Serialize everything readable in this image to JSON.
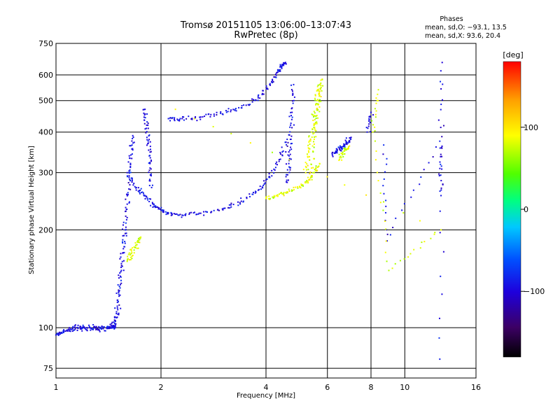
{
  "chart_data": {
    "type": "scatter",
    "title": "Tromsø 20151105 13:06:00–13:07:43",
    "subtitle": "RwPretec (8p)",
    "xlabel": "Frequency [MHz]",
    "ylabel": "Stationary phase Virtual Height [km]",
    "x_scale": "log",
    "y_scale": "log",
    "xlim": [
      1,
      16
    ],
    "ylim": [
      70,
      750
    ],
    "x_ticks": [
      1,
      2,
      4,
      6,
      8,
      10,
      16
    ],
    "x_tick_labels": [
      "1",
      "2",
      "4",
      "6",
      "8",
      "10",
      "16"
    ],
    "y_ticks": [
      75,
      100,
      200,
      300,
      400,
      500,
      600,
      750
    ],
    "y_tick_labels": [
      "75",
      "100",
      "200",
      "300",
      "400",
      "500",
      "600",
      "750"
    ],
    "grid": true,
    "stats": {
      "header": "Phases",
      "line_o": "mean, sd,O: −93.1, 13.5",
      "line_x": "mean, sd,X:  93.6, 20.4"
    },
    "colorbar": {
      "label": "[deg]",
      "range": [
        -180,
        180
      ],
      "ticks": [
        100,
        0,
        -100
      ],
      "tick_labels": [
        "100",
        "0",
        "−100"
      ],
      "colors": [
        "#000000",
        "#3c0064",
        "#1e00dc",
        "#0050ff",
        "#00c8ff",
        "#00ff80",
        "#50ff00",
        "#ffff00",
        "#ffa000",
        "#ff0000"
      ]
    },
    "series": [
      {
        "mode": "O",
        "phase_mean": -93.1,
        "segments": [
          {
            "x": [
              1.0,
              1.05,
              1.1,
              1.15,
              1.2,
              1.25,
              1.3,
              1.35,
              1.4,
              1.45,
              1.48
            ],
            "y": [
              95,
              97,
              99,
              100,
              100,
              100,
              100,
              99,
              100,
              101,
              100
            ]
          },
          {
            "x": [
              1.45,
              1.48,
              1.5,
              1.52,
              1.54,
              1.56,
              1.58,
              1.6,
              1.62,
              1.64,
              1.66
            ],
            "y": [
              100,
              105,
              115,
              130,
              150,
              175,
              200,
              240,
              290,
              340,
              390
            ]
          },
          {
            "x": [
              1.6,
              1.7,
              1.8,
              1.9,
              2.0,
              2.1,
              2.3,
              2.6,
              3.0,
              3.4,
              3.8,
              4.1,
              4.4,
              4.6
            ],
            "y": [
              300,
              270,
              255,
              240,
              230,
              225,
              222,
              225,
              232,
              245,
              265,
              290,
              330,
              380
            ]
          },
          {
            "x": [
              2.1,
              2.3,
              2.6,
              3.0,
              3.4,
              3.8,
              4.1,
              4.3,
              4.45,
              4.55
            ],
            "y": [
              440,
              440,
              445,
              455,
              475,
              510,
              560,
              610,
              640,
              655
            ]
          },
          {
            "x": [
              4.6,
              4.65,
              4.7,
              4.75,
              4.8
            ],
            "y": [
              280,
              320,
              380,
              460,
              560
            ]
          },
          {
            "x": [
              6.2,
              6.4,
              6.6,
              6.8,
              7.0
            ],
            "y": [
              340,
              350,
              360,
              370,
              380
            ]
          },
          {
            "x": [
              7.8,
              8.0
            ],
            "y": [
              400,
              460
            ]
          },
          {
            "x": [
              8.7,
              8.9,
              12.6,
              12.7,
              12.8,
              12.6
            ],
            "y": [
              365,
              185,
              375,
              255,
              655,
              80
            ]
          },
          {
            "x": [
              1.8,
              1.82,
              1.84,
              1.86,
              1.88
            ],
            "y": [
              470,
              420,
              370,
              320,
              270
            ]
          }
        ]
      },
      {
        "mode": "X",
        "phase_mean": 93.6,
        "segments": [
          {
            "x": [
              4.0,
              4.3,
              4.6,
              5.0,
              5.3,
              5.5,
              5.7
            ],
            "y": [
              250,
              255,
              262,
              272,
              285,
              300,
              320
            ]
          },
          {
            "x": [
              5.2,
              5.3,
              5.4,
              5.5,
              5.6,
              5.7
            ],
            "y": [
              300,
              350,
              400,
              450,
              500,
              560
            ]
          },
          {
            "x": [
              5.4,
              5.5,
              5.6,
              5.7,
              5.8
            ],
            "y": [
              310,
              380,
              450,
              520,
              580
            ]
          },
          {
            "x": [
              6.5,
              6.7,
              6.9
            ],
            "y": [
              330,
              350,
              360
            ]
          },
          {
            "x": [
              1.6,
              1.65,
              1.7,
              1.75
            ],
            "y": [
              160,
              170,
              180,
              190
            ]
          },
          {
            "x": [
              8.4,
              8.1,
              9.0,
              12.7,
              2.2
            ],
            "y": [
              540,
              400,
              150,
              200,
              470
            ]
          }
        ]
      }
    ]
  }
}
